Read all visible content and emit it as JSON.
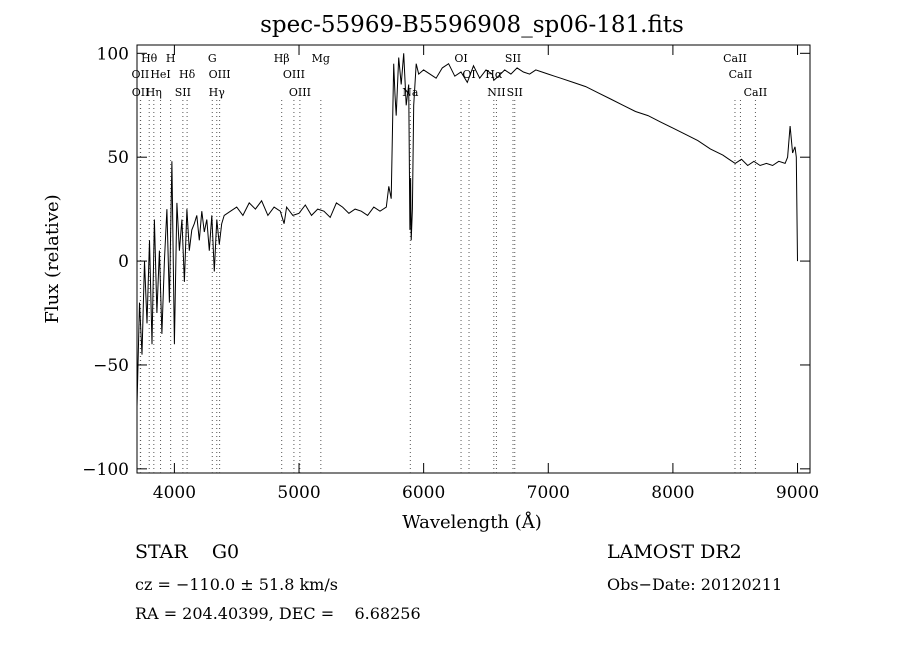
{
  "chart_data": {
    "type": "line",
    "title": "spec-55969-B5596908_sp06-181.fits",
    "xlabel": "Wavelength (Å)",
    "ylabel": "Flux (relative)",
    "xlim": [
      3700,
      9100
    ],
    "ylim": [
      -102,
      104
    ],
    "x_ticks": [
      {
        "value": 4000,
        "label": "4000"
      },
      {
        "value": 5000,
        "label": "5000"
      },
      {
        "value": 6000,
        "label": "6000"
      },
      {
        "value": 7000,
        "label": "7000"
      },
      {
        "value": 8000,
        "label": "8000"
      },
      {
        "value": 9000,
        "label": "9000"
      }
    ],
    "y_ticks": [
      {
        "value": 100,
        "label": "100"
      },
      {
        "value": 50,
        "label": "50"
      },
      {
        "value": 0,
        "label": "0"
      },
      {
        "value": -50,
        "label": "−50"
      },
      {
        "value": -100,
        "label": "−100"
      }
    ],
    "grid": false,
    "spectrum": {
      "x": [
        3700,
        3720,
        3740,
        3760,
        3780,
        3800,
        3820,
        3840,
        3860,
        3880,
        3900,
        3920,
        3940,
        3960,
        3980,
        4000,
        4020,
        4040,
        4060,
        4080,
        4100,
        4120,
        4140,
        4160,
        4180,
        4200,
        4220,
        4240,
        4260,
        4280,
        4300,
        4320,
        4340,
        4360,
        4380,
        4400,
        4450,
        4500,
        4550,
        4600,
        4650,
        4700,
        4750,
        4800,
        4850,
        4880,
        4900,
        4950,
        5000,
        5050,
        5100,
        5150,
        5200,
        5250,
        5300,
        5350,
        5400,
        5450,
        5500,
        5550,
        5600,
        5650,
        5700,
        5720,
        5740,
        5760,
        5770,
        5780,
        5800,
        5820,
        5840,
        5860,
        5880,
        5890,
        5895,
        5900,
        5910,
        5920,
        5940,
        5960,
        6000,
        6050,
        6100,
        6150,
        6200,
        6250,
        6300,
        6350,
        6400,
        6450,
        6500,
        6550,
        6563,
        6600,
        6650,
        6700,
        6750,
        6800,
        6850,
        6900,
        6950,
        7000,
        7050,
        7100,
        7200,
        7300,
        7400,
        7500,
        7600,
        7700,
        7800,
        7900,
        8000,
        8100,
        8200,
        8300,
        8400,
        8450,
        8500,
        8550,
        8600,
        8650,
        8700,
        8750,
        8800,
        8850,
        8900,
        8920,
        8940,
        8960,
        8980,
        8990,
        9000
      ],
      "y": [
        -70,
        -20,
        -45,
        0,
        -30,
        10,
        -40,
        20,
        -25,
        5,
        -35,
        0,
        25,
        -20,
        48,
        -40,
        28,
        5,
        20,
        -10,
        25,
        5,
        15,
        18,
        22,
        10,
        24,
        14,
        20,
        5,
        22,
        -5,
        20,
        8,
        18,
        22,
        24,
        26,
        22,
        28,
        25,
        29,
        22,
        26,
        24,
        18,
        26,
        22,
        23,
        27,
        22,
        25,
        24,
        21,
        28,
        26,
        23,
        25,
        24,
        22,
        26,
        24,
        26,
        36,
        30,
        95,
        80,
        70,
        98,
        85,
        100,
        75,
        85,
        15,
        40,
        10,
        25,
        75,
        95,
        90,
        92,
        90,
        88,
        93,
        95,
        89,
        91,
        86,
        94,
        88,
        92,
        90,
        87,
        89,
        92,
        90,
        93,
        91,
        90,
        92,
        91,
        90,
        89,
        88,
        86,
        84,
        81,
        78,
        75,
        72,
        70,
        67,
        64,
        61,
        58,
        54,
        51,
        49,
        47,
        49,
        46,
        48,
        46,
        47,
        46,
        48,
        47,
        50,
        65,
        52,
        55,
        50,
        0
      ]
    },
    "lines": [
      {
        "label": "Hθ",
        "x": 3798,
        "row": 1
      },
      {
        "label": "H",
        "x": 3970,
        "row": 1
      },
      {
        "label": "G",
        "x": 4304,
        "row": 1
      },
      {
        "label": "Hβ",
        "x": 4861,
        "row": 1
      },
      {
        "label": "Mg",
        "x": 5175,
        "row": 1
      },
      {
        "label": "OI",
        "x": 6300,
        "row": 1
      },
      {
        "label": "SII",
        "x": 6717,
        "row": 1
      },
      {
        "label": "CaII",
        "x": 8498,
        "row": 1
      },
      {
        "label": "OII",
        "x": 3727,
        "row": 2
      },
      {
        "label": "HeI",
        "x": 3889,
        "row": 2
      },
      {
        "label": "OIII",
        "x": 4363,
        "row": 2
      },
      {
        "label": "OIII",
        "x": 4959,
        "row": 2
      },
      {
        "label": "OI",
        "x": 6364,
        "row": 2
      },
      {
        "label": "Hα",
        "x": 6563,
        "row": 2
      },
      {
        "label": "CaII",
        "x": 8542,
        "row": 2
      },
      {
        "label": "OII",
        "x": 3729,
        "row": 3
      },
      {
        "label": "Hη",
        "x": 3835,
        "row": 3
      },
      {
        "label": "SII",
        "x": 4068,
        "row": 3
      },
      {
        "label": "Hδ",
        "x": 4102,
        "row": 2
      },
      {
        "label": "Hγ",
        "x": 4340,
        "row": 3
      },
      {
        "label": "OIII",
        "x": 5007,
        "row": 3
      },
      {
        "label": "Na",
        "x": 5893,
        "row": 3
      },
      {
        "label": "NII",
        "x": 6584,
        "row": 3
      },
      {
        "label": "SII",
        "x": 6731,
        "row": 3
      },
      {
        "label": "CaII",
        "x": 8662,
        "row": 3
      }
    ]
  },
  "info": {
    "object": "STAR    G0",
    "survey": "LAMOST DR2",
    "cz": "cz = −110.0 ± 51.8 km/s",
    "obsdate": "Obs−Date: 20120211",
    "coords": "RA = 204.40399, DEC =    6.68256"
  }
}
